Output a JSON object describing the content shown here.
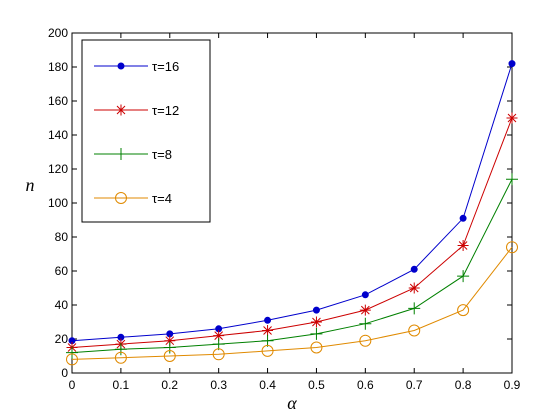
{
  "chart_data": {
    "type": "line",
    "title": "",
    "xlabel": "α",
    "ylabel": "n",
    "xlim": [
      0,
      0.9
    ],
    "ylim": [
      0,
      200
    ],
    "xticks": [
      0,
      0.1,
      0.2,
      0.3,
      0.4,
      0.5,
      0.6,
      0.7,
      0.8,
      0.9
    ],
    "yticks": [
      0,
      20,
      40,
      60,
      80,
      100,
      120,
      140,
      160,
      180,
      200
    ],
    "xtick_labels": [
      "0",
      "0.1",
      "0.2",
      "0.3",
      "0.4",
      "0.5",
      "0.6",
      "0.7",
      "0.8",
      "0.9"
    ],
    "ytick_labels": [
      "0",
      "20",
      "40",
      "60",
      "80",
      "100",
      "120",
      "140",
      "160",
      "180",
      "200"
    ],
    "grid": false,
    "legend_position": "top-left",
    "x": [
      0,
      0.1,
      0.2,
      0.3,
      0.4,
      0.5,
      0.6,
      0.7,
      0.8,
      0.9
    ],
    "series": [
      {
        "name": "τ=16",
        "color": "#0000cc",
        "marker": "dot",
        "values": [
          19,
          21,
          23,
          26,
          31,
          37,
          46,
          61,
          91,
          182
        ]
      },
      {
        "name": "τ=12",
        "color": "#cc0000",
        "marker": "asterisk",
        "values": [
          15,
          17,
          19,
          22,
          25,
          30,
          37,
          50,
          75,
          150
        ]
      },
      {
        "name": "τ=8",
        "color": "#008000",
        "marker": "plus",
        "values": [
          12,
          14,
          15,
          17,
          19,
          23,
          29,
          38,
          57,
          114
        ]
      },
      {
        "name": "τ=4",
        "color": "#e08a00",
        "marker": "circle",
        "values": [
          8,
          9,
          10,
          11,
          13,
          15,
          19,
          25,
          37,
          74
        ]
      }
    ]
  }
}
